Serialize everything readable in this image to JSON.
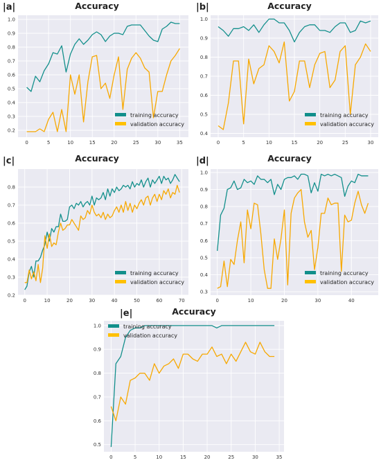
{
  "colors": {
    "training": "#128f8b",
    "validation": "#f7a800",
    "legend_validation": "#ffc000",
    "plot_bg": "#eaeaf2",
    "grid": "#ffffff"
  },
  "chart_data": [
    {
      "id": "a",
      "panel_label": "|a|",
      "type": "line",
      "title": "Accuracy",
      "legend": [
        "training accuracy",
        "validation accuracy"
      ],
      "legend_position": "lower-right",
      "xlim": [
        -2,
        37
      ],
      "ylim": [
        0.15,
        1.03
      ],
      "xticks": [
        0,
        5,
        10,
        15,
        20,
        25,
        30,
        35
      ],
      "yticks": [
        0.2,
        0.3,
        0.4,
        0.5,
        0.6,
        0.7,
        0.8,
        0.9,
        1.0
      ],
      "grid": true,
      "series": [
        {
          "name": "training accuracy",
          "x": [
            0,
            1,
            2,
            3,
            4,
            5,
            6,
            7,
            8,
            9,
            10,
            11,
            12,
            13,
            14,
            15,
            16,
            17,
            18,
            19,
            20,
            21,
            22,
            23,
            24,
            25,
            26,
            27,
            28,
            29,
            30,
            31,
            32,
            33,
            34,
            35
          ],
          "values": [
            0.51,
            0.48,
            0.59,
            0.55,
            0.63,
            0.68,
            0.76,
            0.75,
            0.81,
            0.62,
            0.75,
            0.82,
            0.86,
            0.82,
            0.85,
            0.89,
            0.91,
            0.89,
            0.84,
            0.88,
            0.9,
            0.9,
            0.89,
            0.95,
            0.96,
            0.96,
            0.96,
            0.92,
            0.88,
            0.85,
            0.84,
            0.93,
            0.95,
            0.98,
            0.97,
            0.97
          ]
        },
        {
          "name": "validation accuracy",
          "x": [
            0,
            1,
            2,
            3,
            4,
            5,
            6,
            7,
            8,
            9,
            10,
            11,
            12,
            13,
            14,
            15,
            16,
            17,
            18,
            19,
            20,
            21,
            22,
            23,
            24,
            25,
            26,
            27,
            28,
            29,
            30,
            31,
            32,
            33,
            34,
            35
          ],
          "values": [
            0.19,
            0.19,
            0.19,
            0.21,
            0.19,
            0.28,
            0.33,
            0.19,
            0.35,
            0.19,
            0.6,
            0.46,
            0.6,
            0.26,
            0.55,
            0.73,
            0.74,
            0.5,
            0.54,
            0.43,
            0.6,
            0.73,
            0.35,
            0.64,
            0.72,
            0.76,
            0.72,
            0.65,
            0.62,
            0.29,
            0.48,
            0.48,
            0.6,
            0.7,
            0.74,
            0.79
          ]
        }
      ]
    },
    {
      "id": "b",
      "panel_label": "|b|",
      "type": "line",
      "title": "Accuracy",
      "legend": [
        "training accuracy",
        "validation accuracy"
      ],
      "legend_position": "lower-right",
      "xlim": [
        -1.5,
        31.5
      ],
      "ylim": [
        0.38,
        1.02
      ],
      "xticks": [
        0,
        5,
        10,
        15,
        20,
        25,
        30
      ],
      "yticks": [
        0.4,
        0.5,
        0.6,
        0.7,
        0.8,
        0.9,
        1.0
      ],
      "grid": true,
      "series": [
        {
          "name": "training accuracy",
          "x": [
            0,
            1,
            2,
            3,
            4,
            5,
            6,
            7,
            8,
            9,
            10,
            11,
            12,
            13,
            14,
            15,
            16,
            17,
            18,
            19,
            20,
            21,
            22,
            23,
            24,
            25,
            26,
            27,
            28,
            29,
            30
          ],
          "values": [
            0.96,
            0.94,
            0.91,
            0.95,
            0.95,
            0.96,
            0.94,
            0.97,
            0.93,
            0.97,
            1.0,
            1.0,
            0.98,
            0.98,
            0.94,
            0.88,
            0.93,
            0.96,
            0.97,
            0.97,
            0.94,
            0.94,
            0.93,
            0.96,
            0.98,
            0.98,
            0.93,
            0.94,
            0.99,
            0.98,
            0.99
          ]
        },
        {
          "name": "validation accuracy",
          "x": [
            0,
            1,
            2,
            3,
            4,
            5,
            6,
            7,
            8,
            9,
            10,
            11,
            12,
            13,
            14,
            15,
            16,
            17,
            18,
            19,
            20,
            21,
            22,
            23,
            24,
            25,
            26,
            27,
            28,
            29,
            30
          ],
          "values": [
            0.44,
            0.42,
            0.56,
            0.78,
            0.78,
            0.45,
            0.79,
            0.66,
            0.74,
            0.76,
            0.86,
            0.83,
            0.77,
            0.88,
            0.57,
            0.62,
            0.78,
            0.78,
            0.64,
            0.76,
            0.82,
            0.83,
            0.64,
            0.68,
            0.83,
            0.86,
            0.5,
            0.76,
            0.8,
            0.87,
            0.83
          ]
        }
      ]
    },
    {
      "id": "c",
      "panel_label": "|c|",
      "type": "line",
      "title": "Accuracy",
      "legend": [
        "training accuracy",
        "validation accuracy"
      ],
      "legend_position": "lower-right",
      "xlim": [
        -3,
        73
      ],
      "ylim": [
        0.2,
        0.9
      ],
      "xticks": [
        0,
        10,
        20,
        30,
        40,
        50,
        60,
        70
      ],
      "yticks": [
        0.2,
        0.3,
        0.4,
        0.5,
        0.6,
        0.7,
        0.8
      ],
      "grid": true,
      "series": [
        {
          "name": "training accuracy",
          "x": [
            0,
            1,
            2,
            3,
            4,
            5,
            6,
            7,
            8,
            9,
            10,
            11,
            12,
            13,
            14,
            15,
            16,
            17,
            18,
            19,
            20,
            21,
            22,
            23,
            24,
            25,
            26,
            27,
            28,
            29,
            30,
            31,
            32,
            33,
            34,
            35,
            36,
            37,
            38,
            39,
            40,
            41,
            42,
            43,
            44,
            45,
            46,
            47,
            48,
            49,
            50,
            51,
            52,
            53,
            54,
            55,
            56,
            57,
            58,
            59,
            60,
            61,
            62,
            63,
            64,
            65,
            66,
            67,
            68,
            69
          ],
          "values": [
            0.23,
            0.25,
            0.33,
            0.36,
            0.3,
            0.39,
            0.39,
            0.41,
            0.45,
            0.48,
            0.55,
            0.5,
            0.57,
            0.55,
            0.58,
            0.58,
            0.65,
            0.61,
            0.61,
            0.62,
            0.69,
            0.7,
            0.68,
            0.71,
            0.7,
            0.72,
            0.69,
            0.71,
            0.72,
            0.7,
            0.75,
            0.7,
            0.74,
            0.73,
            0.74,
            0.77,
            0.73,
            0.79,
            0.75,
            0.79,
            0.77,
            0.8,
            0.78,
            0.79,
            0.81,
            0.8,
            0.81,
            0.79,
            0.83,
            0.8,
            0.82,
            0.81,
            0.84,
            0.8,
            0.83,
            0.85,
            0.8,
            0.84,
            0.82,
            0.84,
            0.86,
            0.82,
            0.86,
            0.84,
            0.85,
            0.82,
            0.84,
            0.87,
            0.85,
            0.83
          ]
        },
        {
          "name": "validation accuracy",
          "x": [
            0,
            1,
            2,
            3,
            4,
            5,
            6,
            7,
            8,
            9,
            10,
            11,
            12,
            13,
            14,
            15,
            16,
            17,
            18,
            19,
            20,
            21,
            22,
            23,
            24,
            25,
            26,
            27,
            28,
            29,
            30,
            31,
            32,
            33,
            34,
            35,
            36,
            37,
            38,
            39,
            40,
            41,
            42,
            43,
            44,
            45,
            46,
            47,
            48,
            49,
            50,
            51,
            52,
            53,
            54,
            55,
            56,
            57,
            58,
            59,
            60,
            61,
            62,
            63,
            64,
            65,
            66,
            67,
            68,
            69
          ],
          "values": [
            0.27,
            0.27,
            0.34,
            0.29,
            0.33,
            0.28,
            0.37,
            0.27,
            0.35,
            0.53,
            0.46,
            0.54,
            0.47,
            0.49,
            0.48,
            0.55,
            0.6,
            0.56,
            0.57,
            0.59,
            0.59,
            0.62,
            0.6,
            0.58,
            0.56,
            0.64,
            0.62,
            0.63,
            0.67,
            0.65,
            0.7,
            0.66,
            0.64,
            0.65,
            0.63,
            0.66,
            0.62,
            0.65,
            0.63,
            0.64,
            0.67,
            0.69,
            0.66,
            0.7,
            0.66,
            0.72,
            0.67,
            0.71,
            0.66,
            0.7,
            0.68,
            0.71,
            0.73,
            0.7,
            0.74,
            0.75,
            0.7,
            0.74,
            0.76,
            0.72,
            0.76,
            0.73,
            0.78,
            0.76,
            0.79,
            0.74,
            0.77,
            0.76,
            0.81,
            0.77
          ]
        }
      ]
    },
    {
      "id": "d",
      "panel_label": "|d|",
      "type": "line",
      "title": "Accuracy",
      "legend": [
        "training accuracy",
        "validation accuracy"
      ],
      "legend_position": "lower-right",
      "xlim": [
        -2,
        48
      ],
      "ylim": [
        0.28,
        1.02
      ],
      "xticks": [
        0,
        10,
        20,
        30,
        40
      ],
      "yticks": [
        0.3,
        0.4,
        0.5,
        0.6,
        0.7,
        0.8,
        0.9,
        1.0
      ],
      "grid": true,
      "series": [
        {
          "name": "training accuracy",
          "x": [
            0,
            1,
            2,
            3,
            4,
            5,
            6,
            7,
            8,
            9,
            10,
            11,
            12,
            13,
            14,
            15,
            16,
            17,
            18,
            19,
            20,
            21,
            22,
            23,
            24,
            25,
            26,
            27,
            28,
            29,
            30,
            31,
            32,
            33,
            34,
            35,
            36,
            37,
            38,
            39,
            40,
            41,
            42,
            43,
            44,
            45
          ],
          "values": [
            0.54,
            0.75,
            0.79,
            0.9,
            0.91,
            0.95,
            0.9,
            0.91,
            0.96,
            0.94,
            0.95,
            0.93,
            0.98,
            0.96,
            0.96,
            0.94,
            0.96,
            0.87,
            0.93,
            0.9,
            0.96,
            0.97,
            0.97,
            0.98,
            0.96,
            0.99,
            0.99,
            0.98,
            0.88,
            0.94,
            0.89,
            0.99,
            0.98,
            0.99,
            0.98,
            0.99,
            0.98,
            0.97,
            0.86,
            0.92,
            0.95,
            0.94,
            0.99,
            0.98,
            0.98,
            0.98
          ]
        },
        {
          "name": "validation accuracy",
          "x": [
            0,
            1,
            2,
            3,
            4,
            5,
            6,
            7,
            8,
            9,
            10,
            11,
            12,
            13,
            14,
            15,
            16,
            17,
            18,
            19,
            20,
            21,
            22,
            23,
            24,
            25,
            26,
            27,
            28,
            29,
            30,
            31,
            32,
            33,
            34,
            35,
            36,
            37,
            38,
            39,
            40,
            41,
            42,
            43,
            44,
            45
          ],
          "values": [
            0.32,
            0.33,
            0.48,
            0.33,
            0.49,
            0.46,
            0.6,
            0.71,
            0.47,
            0.78,
            0.67,
            0.82,
            0.81,
            0.64,
            0.43,
            0.32,
            0.32,
            0.61,
            0.49,
            0.61,
            0.78,
            0.34,
            0.76,
            0.85,
            0.88,
            0.9,
            0.71,
            0.62,
            0.66,
            0.43,
            0.56,
            0.76,
            0.76,
            0.85,
            0.81,
            0.82,
            0.82,
            0.42,
            0.75,
            0.71,
            0.72,
            0.82,
            0.89,
            0.81,
            0.76,
            0.82
          ]
        }
      ]
    },
    {
      "id": "e",
      "panel_label": "|e|",
      "type": "line",
      "title": "Accuracy",
      "legend": [
        "training accuracy",
        "validation accuracy"
      ],
      "legend_position": "upper-left",
      "xlim": [
        -1.5,
        36
      ],
      "ylim": [
        0.47,
        1.02
      ],
      "xticks": [
        0,
        5,
        10,
        15,
        20,
        25,
        30,
        35
      ],
      "yticks": [
        0.5,
        0.6,
        0.7,
        0.8,
        0.9,
        1.0
      ],
      "grid": true,
      "series": [
        {
          "name": "training accuracy",
          "x": [
            0,
            1,
            2,
            3,
            4,
            5,
            6,
            7,
            8,
            9,
            10,
            11,
            12,
            13,
            14,
            15,
            16,
            17,
            18,
            19,
            20,
            21,
            22,
            23,
            24,
            25,
            26,
            27,
            28,
            29,
            30,
            31,
            32,
            33,
            34
          ],
          "values": [
            0.49,
            0.84,
            0.87,
            0.95,
            0.98,
            0.99,
            0.99,
            1.0,
            1.0,
            1.0,
            1.0,
            1.0,
            1.0,
            1.0,
            1.0,
            1.0,
            1.0,
            1.0,
            1.0,
            1.0,
            1.0,
            1.0,
            0.99,
            1.0,
            1.0,
            1.0,
            1.0,
            1.0,
            1.0,
            1.0,
            1.0,
            1.0,
            1.0,
            1.0,
            1.0
          ]
        },
        {
          "name": "validation accuracy",
          "x": [
            0,
            1,
            2,
            3,
            4,
            5,
            6,
            7,
            8,
            9,
            10,
            11,
            12,
            13,
            14,
            15,
            16,
            17,
            18,
            19,
            20,
            21,
            22,
            23,
            24,
            25,
            26,
            27,
            28,
            29,
            30,
            31,
            32,
            33,
            34
          ],
          "values": [
            0.66,
            0.6,
            0.7,
            0.67,
            0.77,
            0.78,
            0.8,
            0.8,
            0.77,
            0.84,
            0.8,
            0.83,
            0.84,
            0.86,
            0.82,
            0.88,
            0.88,
            0.86,
            0.85,
            0.88,
            0.88,
            0.91,
            0.87,
            0.88,
            0.84,
            0.88,
            0.85,
            0.89,
            0.93,
            0.89,
            0.88,
            0.93,
            0.89,
            0.87,
            0.87
          ]
        }
      ]
    }
  ]
}
